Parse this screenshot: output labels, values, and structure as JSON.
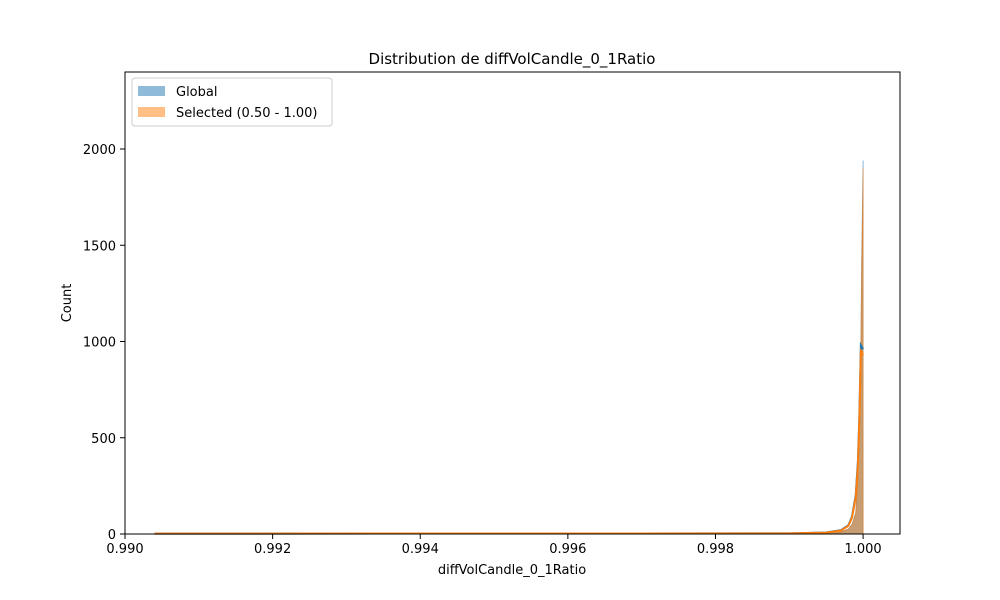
{
  "chart_data": {
    "type": "histogram",
    "title": "Distribution de diffVolCandle_0_1Ratio",
    "xlabel": "diffVolCandle_0_1Ratio",
    "ylabel": "Count",
    "xlim": [
      0.99,
      1.0005
    ],
    "ylim": [
      0,
      2400
    ],
    "xticks": [
      0.99,
      0.992,
      0.994,
      0.996,
      0.998,
      1.0
    ],
    "xtick_labels": [
      "0.990",
      "0.992",
      "0.994",
      "0.996",
      "0.998",
      "1.000"
    ],
    "yticks": [
      0,
      500,
      1000,
      1500,
      2000
    ],
    "ytick_labels": [
      "0",
      "500",
      "1000",
      "1500",
      "2000"
    ],
    "grid": false,
    "legend_position": "top-left",
    "series": [
      {
        "name": "Global",
        "color": "#1f77b4",
        "x": [
          0.9904,
          0.999,
          0.9995,
          0.9997,
          0.9998,
          0.99985,
          0.9999,
          0.99993,
          0.99995,
          0.99997,
          0.99998,
          1.0
        ],
        "values": [
          2,
          3,
          6,
          12,
          25,
          50,
          110,
          300,
          600,
          1000,
          1400,
          1940
        ],
        "kde_x": [
          0.9904,
          0.999,
          0.9995,
          0.9997,
          0.9998,
          0.99985,
          0.9999,
          0.99993,
          0.99995,
          0.99997,
          1.0
        ],
        "kde_y": [
          2,
          3,
          8,
          20,
          45,
          90,
          200,
          380,
          620,
          980,
          960
        ]
      },
      {
        "name": "Selected (0.50 - 1.00)",
        "color": "#ff7f0e",
        "x": [
          0.9904,
          0.999,
          0.9995,
          0.9997,
          0.9998,
          0.99985,
          0.9999,
          0.99993,
          0.99995,
          0.99997,
          0.99998,
          1.0
        ],
        "values": [
          2,
          3,
          6,
          12,
          24,
          48,
          105,
          290,
          580,
          950,
          1350,
          1900
        ],
        "kde_x": [
          0.9904,
          0.999,
          0.9995,
          0.9997,
          0.9998,
          0.99985,
          0.9999,
          0.99993,
          0.99995,
          0.99997,
          1.0
        ],
        "kde_y": [
          2,
          3,
          7,
          18,
          42,
          85,
          190,
          360,
          600,
          950,
          930
        ]
      }
    ]
  }
}
